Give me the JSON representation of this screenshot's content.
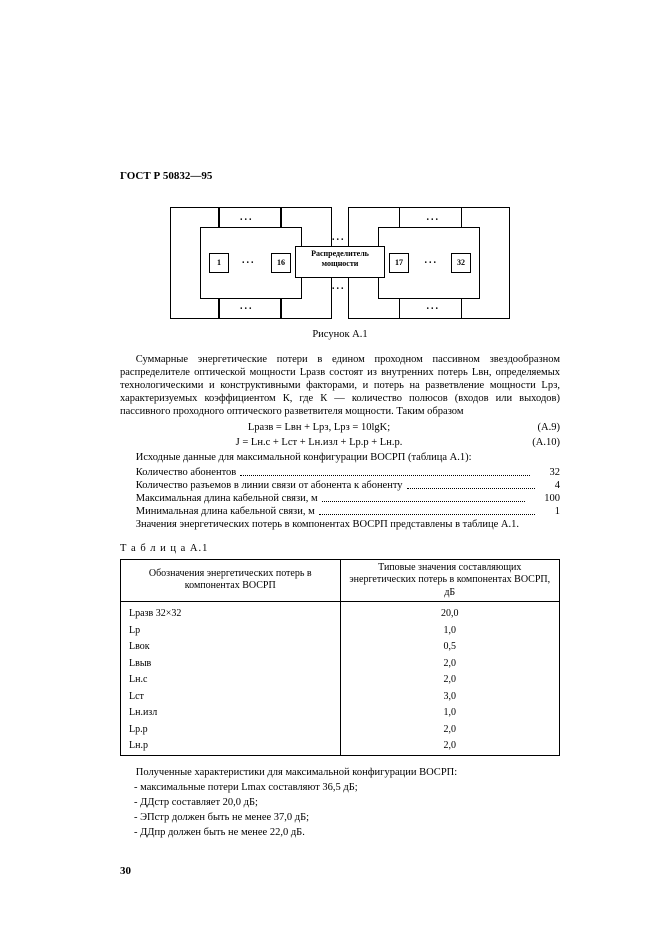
{
  "doc_header": "ГОСТ Р 50832—95",
  "figure": {
    "node1": "1",
    "node16": "16",
    "node17": "17",
    "node32": "32",
    "center_line1": "Распределитель",
    "center_line2": "мощности",
    "dots": "..."
  },
  "fig_caption": "Рисунок А.1",
  "para1": "Суммарные энергетические потери в едином проходном пассивном звездообразном распределителе оптической мощности Lразв состоят из внутренних потерь Lвн, определяемых технологическими и конструктивными факторами, и потерь на разветвление мощности Lрз, характеризуемых коэффициентом К, где К — количество полюсов (входов или выходов) пассивного проходного оптического разветвителя мощности. Таким образом",
  "eq1_body": "Lразв = Lвн + Lрз,  Lрз = 10lgK;",
  "eq1_num": "(А.9)",
  "eq2_body": "J = Lн.с + Lст + Lн.изл + Lр.р + Lн.р.",
  "eq2_num": "(А.10)",
  "list_intro": "Исходные данные для максимальной конфигурации ВОСРП (таблица А.1):",
  "list": [
    {
      "label": "Количество абонентов",
      "value": "32"
    },
    {
      "label": "Количество разъемов в линии связи от абонента к абоненту",
      "value": "4"
    },
    {
      "label": "Максимальная длина кабельной связи, м",
      "value": "100"
    },
    {
      "label": "Минимальная длина кабельной связи, м",
      "value": "1"
    }
  ],
  "list_outro": "Значения энергетических потерь в компонентах ВОСРП представлены в таблице А.1.",
  "table_title": "Т а б л и ц а  А.1",
  "table": {
    "col1_header": "Обозначения энергетических потерь в компонентах ВОСРП",
    "col2_header": "Типовые значения составляющих энергетических потерь в компонентах ВОСРП, дБ",
    "rows": [
      {
        "label": "Lразв 32×32",
        "value": "20,0"
      },
      {
        "label": "Lр",
        "value": "1,0"
      },
      {
        "label": "Lвок",
        "value": "0,5"
      },
      {
        "label": "Lвыв",
        "value": "2,0"
      },
      {
        "label": "Lн.с",
        "value": "2,0"
      },
      {
        "label": "Lст",
        "value": "3,0"
      },
      {
        "label": "Lн.изл",
        "value": "1,0"
      },
      {
        "label": "Lр.р",
        "value": "2,0"
      },
      {
        "label": "Lн.р",
        "value": "2,0"
      }
    ]
  },
  "results": {
    "intro": "Полученные характеристики для максимальной конфигурации ВОСРП:",
    "items": [
      "- максимальные потери Lmax составляют 36,5 дБ;",
      "- ДДстр составляет 20,0 дБ;",
      "- ЭПстр должен быть не менее 37,0 дБ;",
      "- ДДпр должен быть не менее 22,0 дБ."
    ]
  },
  "page_number": "30",
  "colors": {
    "text": "#000000",
    "background": "#ffffff"
  }
}
